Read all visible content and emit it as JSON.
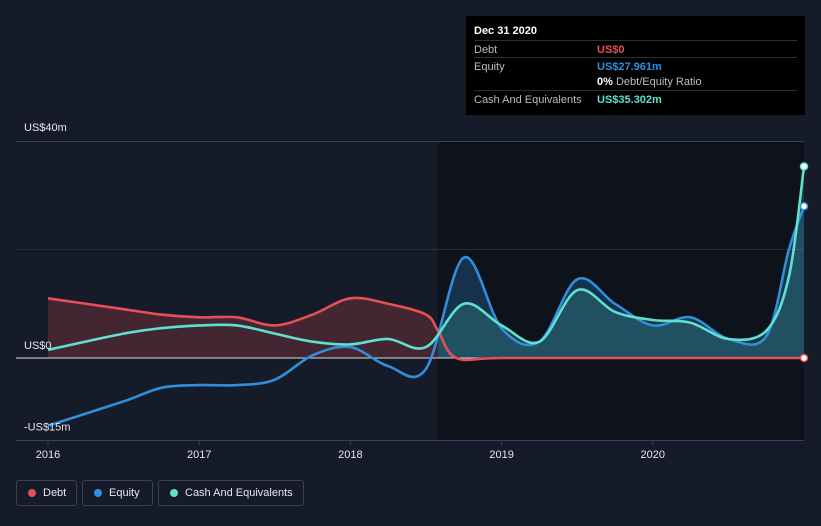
{
  "colors": {
    "background": "#151b28",
    "plot_dark": "#0d121b",
    "debt": "#e64f57",
    "equity": "#2f8fdc",
    "cash": "#5fe0d0",
    "grid": "#3a4152",
    "text": "#e6e8ec"
  },
  "tooltip": {
    "date": "Dec 31 2020",
    "debt_label": "Debt",
    "debt_value": "US$0",
    "equity_label": "Equity",
    "equity_value": "US$27.961m",
    "ratio_value": "0%",
    "ratio_label": "Debt/Equity Ratio",
    "cash_label": "Cash And Equivalents",
    "cash_value": "US$35.302m"
  },
  "legend": {
    "debt": "Debt",
    "equity": "Equity",
    "cash": "Cash And Equivalents"
  },
  "chart_data": {
    "type": "area",
    "title": "",
    "xlabel": "",
    "ylabel": "",
    "xlim": [
      2016,
      2021
    ],
    "ylim": [
      -15,
      40
    ],
    "y_ticks": [
      {
        "value": 40,
        "label": "US$40m"
      },
      {
        "value": 0,
        "label": "US$0"
      },
      {
        "value": -15,
        "label": "-US$15m"
      }
    ],
    "x_ticks": [
      {
        "value": 2016,
        "label": "2016"
      },
      {
        "value": 2017,
        "label": "2017"
      },
      {
        "value": 2018,
        "label": "2018"
      },
      {
        "value": 2019,
        "label": "2019"
      },
      {
        "value": 2020,
        "label": "2020"
      }
    ],
    "forecast_start": 2018.58,
    "series": [
      {
        "name": "Debt",
        "key": "debt",
        "points": [
          [
            2016,
            11
          ],
          [
            2016.5,
            9
          ],
          [
            2016.75,
            8
          ],
          [
            2017,
            7.5
          ],
          [
            2017.25,
            7.5
          ],
          [
            2017.5,
            6
          ],
          [
            2017.75,
            8
          ],
          [
            2018,
            11
          ],
          [
            2018.25,
            10
          ],
          [
            2018.5,
            8
          ],
          [
            2018.58,
            5
          ],
          [
            2018.7,
            0
          ],
          [
            2019,
            0
          ],
          [
            2020,
            0
          ],
          [
            2021,
            0
          ]
        ]
      },
      {
        "name": "Equity",
        "key": "equity",
        "points": [
          [
            2016,
            -12.5
          ],
          [
            2016.5,
            -8
          ],
          [
            2016.75,
            -5.5
          ],
          [
            2017,
            -5
          ],
          [
            2017.25,
            -5
          ],
          [
            2017.5,
            -4
          ],
          [
            2017.75,
            0.5
          ],
          [
            2018,
            2
          ],
          [
            2018.25,
            -1.5
          ],
          [
            2018.5,
            -2
          ],
          [
            2018.75,
            18.5
          ],
          [
            2019,
            5.5
          ],
          [
            2019.25,
            3
          ],
          [
            2019.5,
            14.5
          ],
          [
            2019.75,
            10
          ],
          [
            2020,
            6
          ],
          [
            2020.25,
            7.5
          ],
          [
            2020.5,
            3.5
          ],
          [
            2020.75,
            4
          ],
          [
            2020.9,
            20
          ],
          [
            2021,
            27.961
          ]
        ]
      },
      {
        "name": "Cash And Equivalents",
        "key": "cash",
        "points": [
          [
            2016,
            1.5
          ],
          [
            2016.5,
            4.5
          ],
          [
            2016.75,
            5.5
          ],
          [
            2017,
            6
          ],
          [
            2017.25,
            6
          ],
          [
            2017.5,
            4.5
          ],
          [
            2017.75,
            3
          ],
          [
            2018,
            2.5
          ],
          [
            2018.25,
            3.5
          ],
          [
            2018.5,
            2
          ],
          [
            2018.75,
            10
          ],
          [
            2019,
            6
          ],
          [
            2019.25,
            3
          ],
          [
            2019.5,
            12.5
          ],
          [
            2019.75,
            8.5
          ],
          [
            2020,
            7
          ],
          [
            2020.25,
            6.5
          ],
          [
            2020.5,
            3.5
          ],
          [
            2020.75,
            5
          ],
          [
            2020.9,
            15
          ],
          [
            2021,
            35.302
          ]
        ]
      }
    ]
  }
}
